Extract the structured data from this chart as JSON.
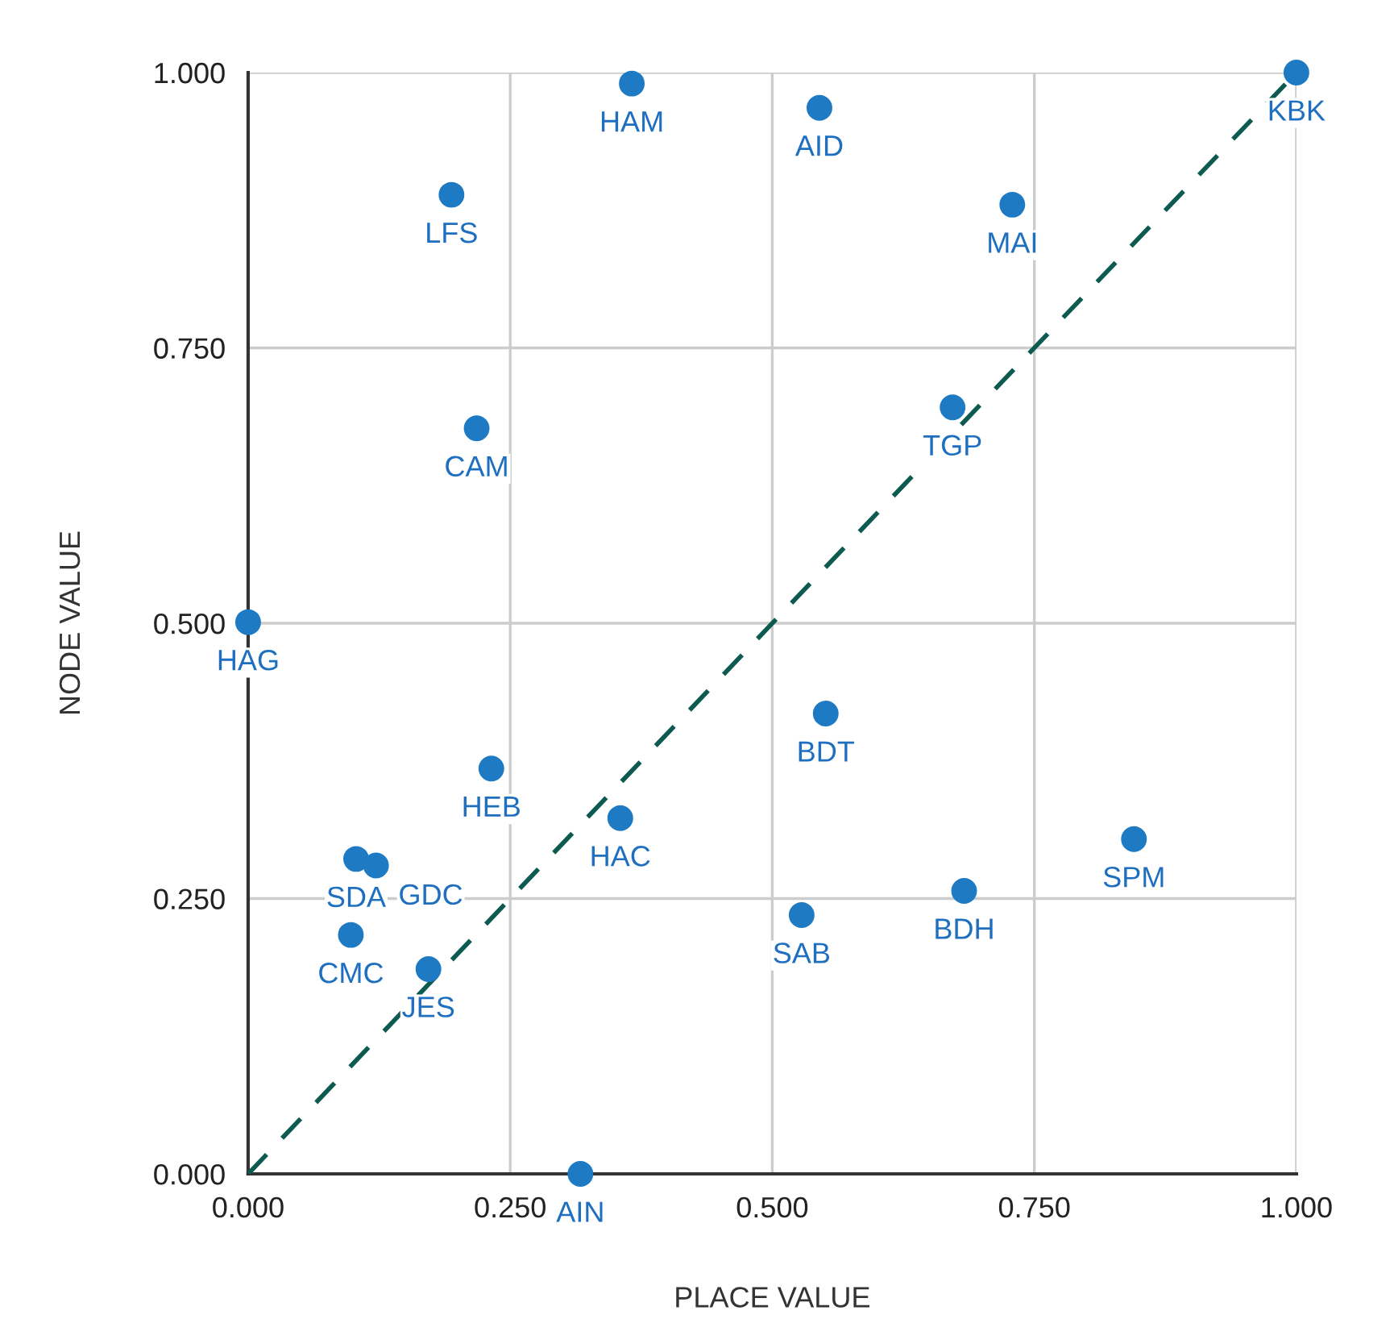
{
  "chart_data": {
    "type": "scatter",
    "xlabel": "PLACE VALUE",
    "ylabel": "NODE VALUE",
    "xlim": [
      0,
      1
    ],
    "ylim": [
      0,
      1
    ],
    "xticks": [
      {
        "value": 0,
        "label": "0.000"
      },
      {
        "value": 0.25,
        "label": "0.250"
      },
      {
        "value": 0.5,
        "label": "0.500"
      },
      {
        "value": 0.75,
        "label": "0.750"
      },
      {
        "value": 1,
        "label": "1.000"
      }
    ],
    "yticks": [
      {
        "value": 0,
        "label": "0.000"
      },
      {
        "value": 0.25,
        "label": "0.250"
      },
      {
        "value": 0.5,
        "label": "0.500"
      },
      {
        "value": 0.75,
        "label": "0.750"
      },
      {
        "value": 1,
        "label": "1.000"
      }
    ],
    "grid": true,
    "series": [
      {
        "marker": "circle",
        "color": "#1f7ac4",
        "x": [
          0.366,
          0.545,
          0.194,
          1.0,
          0.729,
          0.672,
          0.218,
          0.0,
          0.551,
          0.232,
          0.355,
          0.103,
          0.122,
          0.098,
          0.172,
          0.528,
          0.683,
          0.845,
          0.317
        ],
        "values": [
          0.99,
          0.968,
          0.889,
          1.0,
          0.88,
          0.696,
          0.677,
          0.501,
          0.418,
          0.368,
          0.323,
          0.286,
          0.28,
          0.217,
          0.186,
          0.235,
          0.257,
          0.304,
          0.0
        ]
      },
      {
        "type": "line",
        "marker": "none",
        "color": "#0d5a50",
        "line_style": "dashed",
        "x": [
          0,
          1
        ],
        "values": [
          0,
          1
        ]
      }
    ],
    "annotations": [
      {
        "text": "HAM",
        "x": 0.366,
        "y": 0.99
      },
      {
        "text": "AID",
        "x": 0.545,
        "y": 0.968
      },
      {
        "text": "LFS",
        "x": 0.194,
        "y": 0.889
      },
      {
        "text": "KBK",
        "x": 1.0,
        "y": 1.0
      },
      {
        "text": "MAI",
        "x": 0.729,
        "y": 0.88
      },
      {
        "text": "TGP",
        "x": 0.672,
        "y": 0.696
      },
      {
        "text": "CAM",
        "x": 0.218,
        "y": 0.677
      },
      {
        "text": "HAG",
        "x": 0.0,
        "y": 0.501
      },
      {
        "text": "BDT",
        "x": 0.551,
        "y": 0.418
      },
      {
        "text": "HEB",
        "x": 0.232,
        "y": 0.368
      },
      {
        "text": "HAC",
        "x": 0.355,
        "y": 0.323
      },
      {
        "text": "SDA",
        "x": 0.103,
        "y": 0.286
      },
      {
        "text": "GDC",
        "x": 0.122,
        "y": 0.28
      },
      {
        "text": "CMC",
        "x": 0.098,
        "y": 0.217
      },
      {
        "text": "JES",
        "x": 0.172,
        "y": 0.186
      },
      {
        "text": "SAB",
        "x": 0.528,
        "y": 0.235
      },
      {
        "text": "BDH",
        "x": 0.683,
        "y": 0.257
      },
      {
        "text": "SPM",
        "x": 0.845,
        "y": 0.304
      },
      {
        "text": "AIN",
        "x": 0.317,
        "y": 0.0
      }
    ]
  }
}
